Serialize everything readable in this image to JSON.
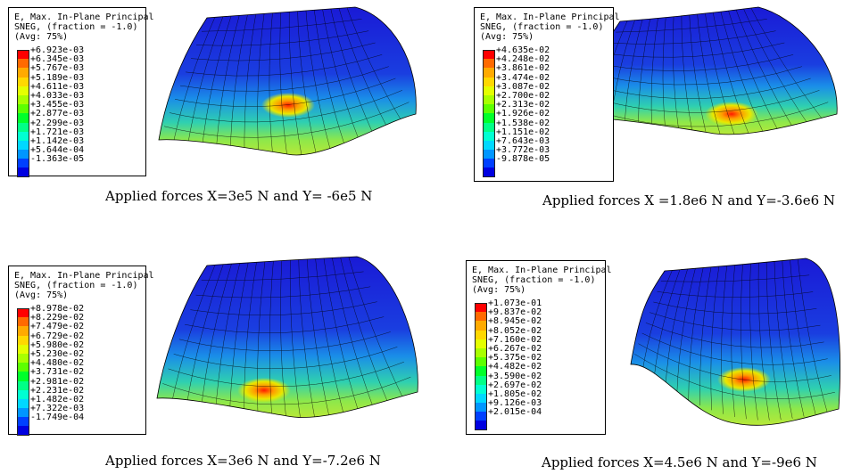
{
  "legend_title": [
    "E, Max. In-Plane Principal",
    "SNEG, (fraction = -1.0)",
    "(Avg: 75%)"
  ],
  "colormap": [
    "#ff0000",
    "#ff6a00",
    "#ffaa00",
    "#ffd800",
    "#e4ff00",
    "#a8ff00",
    "#5cff00",
    "#00ff2a",
    "#00ff86",
    "#00ffd2",
    "#00d8ff",
    "#0096ff",
    "#0040ff",
    "#0000e0"
  ],
  "panels": [
    {
      "caption": "Applied forces X=3e5 N and Y= -6e5 N",
      "legend_values": [
        "+6.923e-03",
        "+6.345e-03",
        "+5.767e-03",
        "+5.189e-03",
        "+4.611e-03",
        "+4.033e-03",
        "+3.455e-03",
        "+2.877e-03",
        "+2.299e-03",
        "+1.721e-03",
        "+1.142e-03",
        "+5.644e-04",
        "-1.363e-05"
      ]
    },
    {
      "caption": "Applied forces X =1.8e6 N and Y=-3.6e6 N",
      "legend_values": [
        "+4.635e-02",
        "+4.248e-02",
        "+3.861e-02",
        "+3.474e-02",
        "+3.087e-02",
        "+2.700e-02",
        "+2.313e-02",
        "+1.926e-02",
        "+1.538e-02",
        "+1.151e-02",
        "+7.643e-03",
        "+3.772e-03",
        "-9.878e-05"
      ]
    },
    {
      "caption": "Applied forces X=3e6 N and Y=-7.2e6 N",
      "legend_values": [
        "+8.978e-02",
        "+8.229e-02",
        "+7.479e-02",
        "+6.729e-02",
        "+5.980e-02",
        "+5.230e-02",
        "+4.480e-02",
        "+3.731e-02",
        "+2.981e-02",
        "+2.231e-02",
        "+1.482e-02",
        "+7.322e-03",
        "-1.749e-04"
      ]
    },
    {
      "caption": "Applied forces X=4.5e6 N and Y=-9e6 N",
      "legend_values": [
        "+1.073e-01",
        "+9.837e-02",
        "+8.945e-02",
        "+8.052e-02",
        "+7.160e-02",
        "+6.267e-02",
        "+5.375e-02",
        "+4.482e-02",
        "+3.590e-02",
        "+2.697e-02",
        "+1.805e-02",
        "+9.126e-03",
        "+2.015e-04"
      ]
    }
  ]
}
